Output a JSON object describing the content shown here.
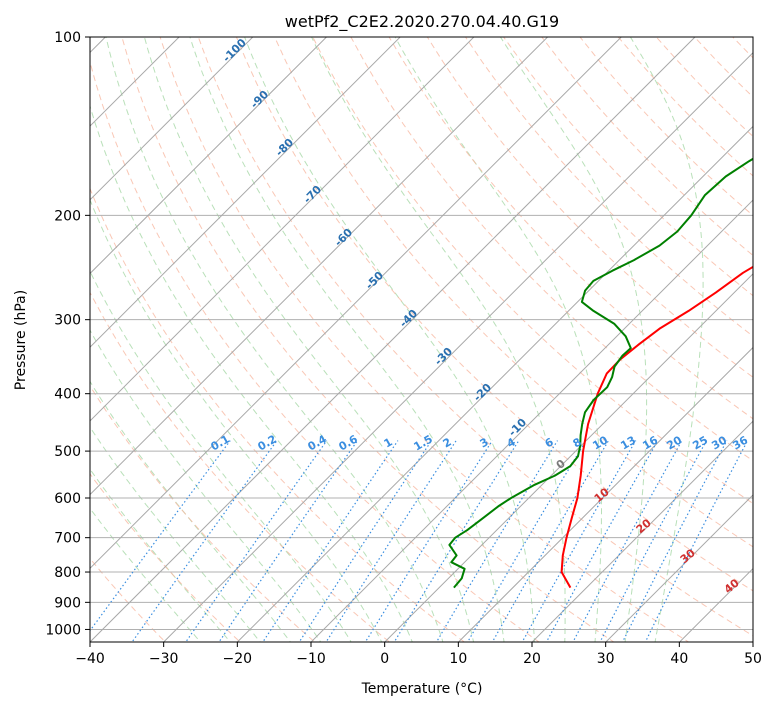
{
  "chart_data": {
    "type": "skew-t",
    "title": "wetPf2_C2E2.2020.270.04.40.G19",
    "xlabel": "Temperature (°C)",
    "ylabel": "Pressure (hPa)",
    "xlim": [
      -40,
      50
    ],
    "ylim": [
      1050,
      100
    ],
    "x_ticks": [
      "−40",
      "−30",
      "−20",
      "−10",
      "0",
      "10",
      "20",
      "30",
      "40",
      "50"
    ],
    "x_tick_values": [
      -40,
      -30,
      -20,
      -10,
      0,
      10,
      20,
      30,
      40,
      50
    ],
    "y_ticks": [
      "1000",
      "900",
      "800",
      "700",
      "600",
      "500",
      "400",
      "300",
      "200",
      "100"
    ],
    "y_tick_values": [
      1000,
      900,
      800,
      700,
      600,
      500,
      400,
      300,
      200,
      100
    ],
    "isotherm_labels": [
      "-100",
      "-90",
      "-80",
      "-70",
      "-60",
      "-50",
      "-40",
      "-30",
      "-20",
      "-10"
    ],
    "isotherm_values": [
      -100,
      -90,
      -80,
      -70,
      -60,
      -50,
      -40,
      -30,
      -20,
      -10
    ],
    "mixing_ratio_labels": [
      "0.1",
      "0.2",
      "0.4",
      "0.6",
      "1",
      "1.5",
      "2",
      "3",
      "4",
      "6",
      "8",
      "10",
      "13",
      "16",
      "20",
      "25",
      "30",
      "36"
    ],
    "mixing_ratio_values": [
      0.1,
      0.2,
      0.4,
      0.6,
      1,
      1.5,
      2,
      3,
      4,
      6,
      8,
      10,
      13,
      16,
      20,
      25,
      30,
      36
    ],
    "zero_label": "0",
    "moist_labels": [
      "10",
      "20",
      "30",
      "40"
    ],
    "moist_values": [
      10,
      20,
      30,
      40
    ],
    "series": [
      {
        "name": "Temperature",
        "color": "#ff0000",
        "points": [
          [
            17.8,
            850
          ],
          [
            14.5,
            800
          ],
          [
            12.4,
            750
          ],
          [
            10.5,
            700
          ],
          [
            8.6,
            650
          ],
          [
            6.6,
            600
          ],
          [
            4.0,
            550
          ],
          [
            1.0,
            500
          ],
          [
            -2.0,
            450
          ],
          [
            -4.8,
            400
          ],
          [
            -6.3,
            370
          ],
          [
            -6.4,
            350
          ],
          [
            -5.9,
            330
          ],
          [
            -5.2,
            310
          ],
          [
            -3.7,
            290
          ],
          [
            -2.5,
            270
          ],
          [
            -1.5,
            250
          ],
          [
            0.5,
            230
          ],
          [
            2.4,
            210
          ],
          [
            4.5,
            195
          ],
          [
            7.5,
            180
          ],
          [
            10.7,
            165
          ],
          [
            13.1,
            150
          ],
          [
            15.4,
            138
          ],
          [
            17.6,
            128
          ],
          [
            20.0,
            118
          ],
          [
            22.5,
            110
          ],
          [
            25.0,
            103
          ],
          [
            26.2,
            100
          ]
        ]
      },
      {
        "name": "Dewpoint",
        "color": "#008000",
        "points": [
          [
            2.0,
            850
          ],
          [
            1.8,
            820
          ],
          [
            0.9,
            790
          ],
          [
            -1.8,
            770
          ],
          [
            -2.0,
            750
          ],
          [
            -4.4,
            720
          ],
          [
            -4.6,
            700
          ],
          [
            -4.0,
            680
          ],
          [
            -3.5,
            650
          ],
          [
            -3.0,
            620
          ],
          [
            -2.4,
            600
          ],
          [
            -1.0,
            570
          ],
          [
            0.5,
            550
          ],
          [
            1.3,
            530
          ],
          [
            1.0,
            510
          ],
          [
            -0.1,
            490
          ],
          [
            -1.5,
            470
          ],
          [
            -2.8,
            450
          ],
          [
            -4.0,
            430
          ],
          [
            -4.5,
            410
          ],
          [
            -4.4,
            390
          ],
          [
            -5.1,
            375
          ],
          [
            -6.2,
            360
          ],
          [
            -6.6,
            345
          ],
          [
            -6.5,
            335
          ],
          [
            -8.8,
            320
          ],
          [
            -12.0,
            305
          ],
          [
            -16.6,
            290
          ],
          [
            -19.4,
            280
          ],
          [
            -20.5,
            268
          ],
          [
            -20.7,
            258
          ],
          [
            -19.5,
            248
          ],
          [
            -18.0,
            238
          ],
          [
            -16.5,
            225
          ],
          [
            -16.0,
            213
          ],
          [
            -16.3,
            200
          ],
          [
            -17.2,
            185
          ],
          [
            -16.9,
            172
          ],
          [
            -15.8,
            162
          ],
          [
            -14.4,
            152
          ],
          [
            -12.3,
            140
          ],
          [
            -10.1,
            128
          ],
          [
            -8.3,
            118
          ],
          [
            -6.0,
            110
          ],
          [
            -3.7,
            104
          ],
          [
            -2.8,
            100
          ]
        ]
      }
    ]
  }
}
